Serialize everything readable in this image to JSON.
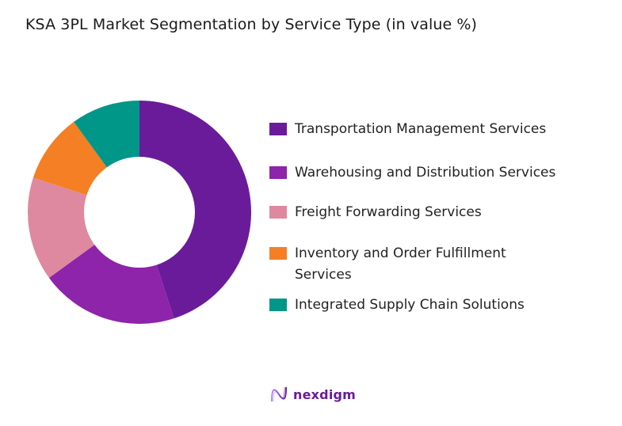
{
  "title": "KSA 3PL Market Segmentation by Service Type (in value %)",
  "chart_data": {
    "type": "pie",
    "subtype": "donut",
    "title": "KSA 3PL Market Segmentation by Service Type (in value %)",
    "categories": [
      "Transportation Management Services",
      "Warehousing and Distribution Services",
      "Freight Forwarding Services",
      "Inventory and Order Fulfillment Services",
      "Integrated Supply Chain Solutions"
    ],
    "values": [
      45,
      20,
      15,
      10,
      10
    ],
    "colors": [
      "#6A1B9A",
      "#8E24AA",
      "#DE89A0",
      "#F47F24",
      "#009688"
    ],
    "legend_position": "right",
    "start_angle": "12 o'clock, clockwise"
  },
  "legend": {
    "items": [
      {
        "label": "Transportation Management Services",
        "color": "#6A1B9A"
      },
      {
        "label": "Warehousing and Distribution Services",
        "color": "#8E24AA"
      },
      {
        "label": "Freight Forwarding Services",
        "color": "#DE89A0"
      },
      {
        "label": "Inventory and Order Fulfillment Services",
        "color": "#F47F24"
      },
      {
        "label": "Integrated Supply Chain Solutions",
        "color": "#009688"
      }
    ]
  },
  "logo": {
    "text": "nexdigm",
    "icon": "nexdigm-wave-icon"
  }
}
